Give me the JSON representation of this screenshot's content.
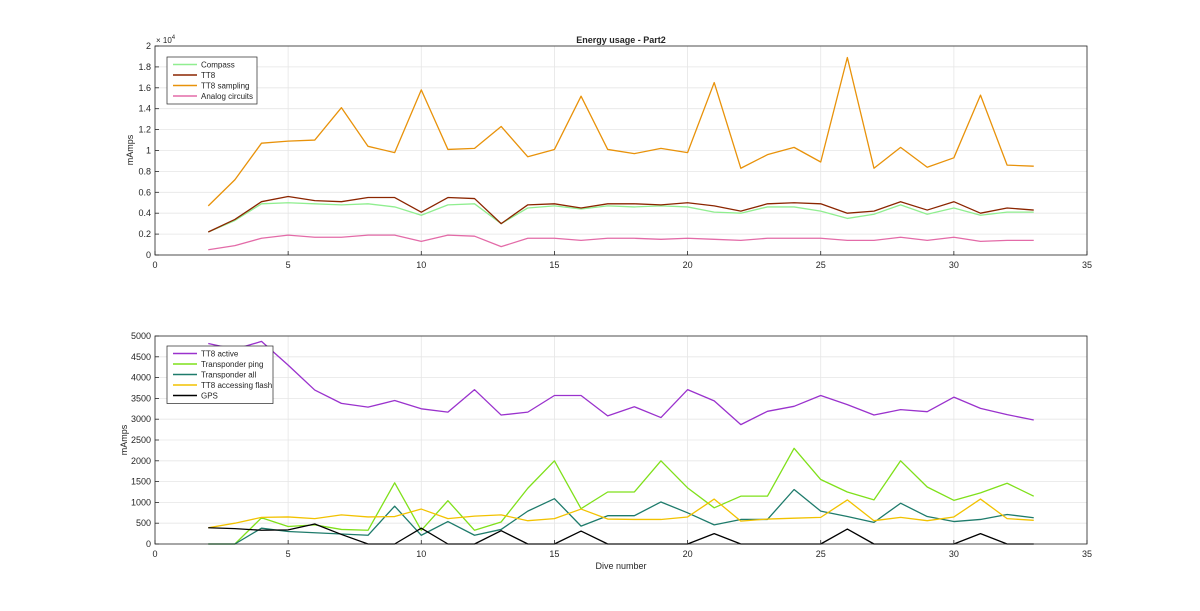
{
  "chart_data": [
    {
      "type": "line",
      "title": "Energy usage - Part2",
      "xlabel": "",
      "ylabel": "mAmps",
      "xlim": [
        0,
        35
      ],
      "ylim": [
        0,
        2
      ],
      "y_exponent_label": "× 10",
      "y_exponent_power": "4",
      "grid": true,
      "legend_position": "top-left",
      "x_ticks": [
        0,
        5,
        10,
        15,
        20,
        25,
        30,
        35
      ],
      "x_tick_labels": [
        "0",
        "5",
        "10",
        "15",
        "20",
        "25",
        "30",
        "35"
      ],
      "y_ticks": [
        0,
        0.2,
        0.4,
        0.6,
        0.8,
        1,
        1.2,
        1.4,
        1.6,
        1.8,
        2
      ],
      "y_tick_labels": [
        "0",
        "0.2",
        "0.4",
        "0.6",
        "0.8",
        "1",
        "1.2",
        "1.4",
        "1.6",
        "1.8",
        "2"
      ],
      "x": [
        2,
        3,
        4,
        5,
        6,
        7,
        8,
        9,
        10,
        11,
        12,
        13,
        14,
        15,
        16,
        17,
        18,
        19,
        20,
        21,
        22,
        23,
        24,
        25,
        26,
        27,
        28,
        29,
        30,
        31,
        32,
        33
      ],
      "series": [
        {
          "name": "Compass",
          "color": "#90ee90",
          "values": [
            0.22,
            0.33,
            0.49,
            0.5,
            0.49,
            0.48,
            0.49,
            0.46,
            0.38,
            0.48,
            0.49,
            0.3,
            0.45,
            0.47,
            0.44,
            0.47,
            0.46,
            0.47,
            0.46,
            0.41,
            0.4,
            0.46,
            0.46,
            0.42,
            0.35,
            0.39,
            0.48,
            0.39,
            0.45,
            0.38,
            0.41,
            0.41
          ]
        },
        {
          "name": "TT8",
          "color": "#8b2500",
          "values": [
            0.22,
            0.34,
            0.51,
            0.56,
            0.52,
            0.51,
            0.55,
            0.55,
            0.41,
            0.55,
            0.54,
            0.3,
            0.48,
            0.49,
            0.45,
            0.49,
            0.49,
            0.48,
            0.5,
            0.47,
            0.42,
            0.49,
            0.5,
            0.49,
            0.4,
            0.42,
            0.51,
            0.43,
            0.51,
            0.4,
            0.45,
            0.43
          ]
        },
        {
          "name": "TT8 sampling",
          "color": "#e8920a",
          "values": [
            0.47,
            0.72,
            1.07,
            1.09,
            1.1,
            1.41,
            1.04,
            0.98,
            1.58,
            1.01,
            1.02,
            1.23,
            0.94,
            1.01,
            1.52,
            1.01,
            0.97,
            1.02,
            0.98,
            1.65,
            0.83,
            0.96,
            1.03,
            0.89,
            1.89,
            0.83,
            1.03,
            0.84,
            0.93,
            1.53,
            0.86,
            0.85
          ]
        },
        {
          "name": "Analog circuits",
          "color": "#e36ba8",
          "values": [
            0.05,
            0.09,
            0.16,
            0.19,
            0.17,
            0.17,
            0.19,
            0.19,
            0.13,
            0.19,
            0.18,
            0.08,
            0.16,
            0.16,
            0.14,
            0.16,
            0.16,
            0.15,
            0.16,
            0.15,
            0.14,
            0.16,
            0.16,
            0.16,
            0.14,
            0.14,
            0.17,
            0.14,
            0.17,
            0.13,
            0.14,
            0.14
          ]
        }
      ]
    },
    {
      "type": "line",
      "title": "",
      "xlabel": "Dive number",
      "ylabel": "mAmps",
      "xlim": [
        0,
        35
      ],
      "ylim": [
        0,
        5000
      ],
      "grid": true,
      "legend_position": "top-left",
      "x_ticks": [
        0,
        5,
        10,
        15,
        20,
        25,
        30,
        35
      ],
      "x_tick_labels": [
        "0",
        "5",
        "10",
        "15",
        "20",
        "25",
        "30",
        "35"
      ],
      "y_ticks": [
        0,
        500,
        1000,
        1500,
        2000,
        2500,
        3000,
        3500,
        4000,
        4500,
        5000
      ],
      "y_tick_labels": [
        "0",
        "500",
        "1000",
        "1500",
        "2000",
        "2500",
        "3000",
        "3500",
        "4000",
        "4500",
        "5000"
      ],
      "x": [
        2,
        3,
        4,
        5,
        6,
        7,
        8,
        9,
        10,
        11,
        12,
        13,
        14,
        15,
        16,
        17,
        18,
        19,
        20,
        21,
        22,
        23,
        24,
        25,
        26,
        27,
        28,
        29,
        30,
        31,
        32,
        33
      ],
      "series": [
        {
          "name": "TT8 active",
          "color": "#9a32cd",
          "values": [
            4820,
            4680,
            4870,
            4300,
            3700,
            3380,
            3290,
            3450,
            3250,
            3170,
            3710,
            3100,
            3170,
            3570,
            3570,
            3080,
            3300,
            3040,
            3710,
            3440,
            2870,
            3190,
            3310,
            3570,
            3350,
            3100,
            3230,
            3180,
            3530,
            3260,
            3110,
            2980
          ]
        },
        {
          "name": "Transponder ping",
          "color": "#7fe01a",
          "values": [
            0,
            0,
            630,
            420,
            460,
            350,
            330,
            1470,
            330,
            1040,
            330,
            530,
            1340,
            2000,
            850,
            1250,
            1250,
            2000,
            1350,
            870,
            1150,
            1150,
            2300,
            1550,
            1250,
            1060,
            2000,
            1370,
            1050,
            1230,
            1460,
            1150
          ]
        },
        {
          "name": "Transponder all",
          "color": "#1e7b6b",
          "values": [
            0,
            0,
            380,
            300,
            270,
            240,
            210,
            910,
            210,
            540,
            210,
            350,
            790,
            1090,
            430,
            680,
            680,
            1010,
            750,
            460,
            590,
            590,
            1310,
            790,
            660,
            520,
            980,
            660,
            540,
            590,
            710,
            630
          ]
        },
        {
          "name": "TT8 accessing flash",
          "color": "#f2c200",
          "values": [
            390,
            500,
            640,
            650,
            610,
            700,
            650,
            660,
            840,
            610,
            670,
            700,
            560,
            610,
            840,
            600,
            590,
            590,
            650,
            1080,
            550,
            600,
            620,
            640,
            1060,
            560,
            640,
            560,
            650,
            1080,
            610,
            570
          ]
        },
        {
          "name": "GPS",
          "color": "#000000",
          "values": [
            390,
            370,
            330,
            340,
            480,
            230,
            0,
            0,
            380,
            0,
            0,
            320,
            0,
            0,
            310,
            0,
            0,
            0,
            0,
            250,
            0,
            0,
            0,
            0,
            360,
            0,
            0,
            0,
            0,
            250,
            0,
            0
          ]
        }
      ]
    }
  ]
}
